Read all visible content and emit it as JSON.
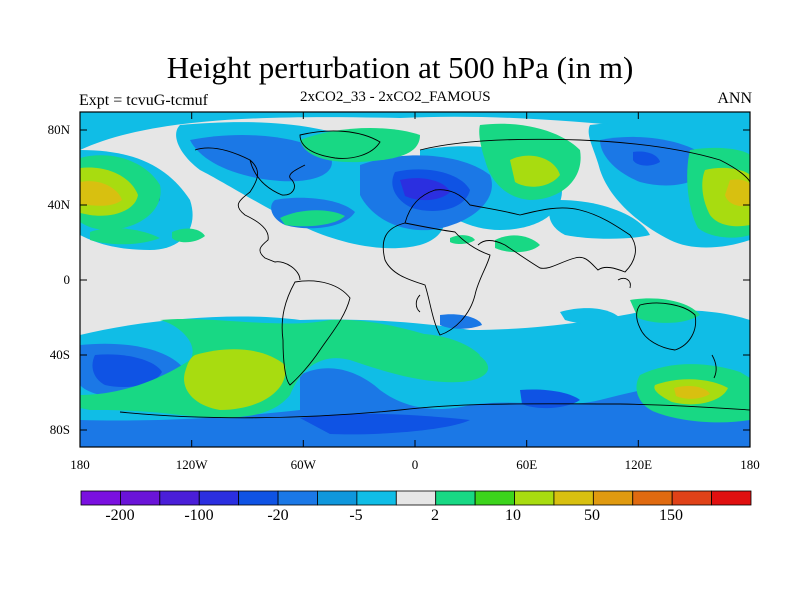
{
  "title": "Height perturbation at 500 hPa (in m)",
  "left_label": "Expt = tcvuG-tcmuf",
  "center_label": "2xCO2_33 - 2xCO2_FAMOUS",
  "right_label": "ANN",
  "lat_ticks": [
    "80N",
    "40N",
    "0",
    "40S",
    "80S"
  ],
  "lon_ticks": [
    "180",
    "120W",
    "60W",
    "0",
    "60E",
    "120E",
    "180"
  ],
  "colorbar": {
    "colors": [
      "#7a10e0",
      "#6a14d8",
      "#4a1ed8",
      "#2b2fe0",
      "#0f53e4",
      "#1b78e6",
      "#0f97dc",
      "#10bde6",
      "#e6e6e6",
      "#18d884",
      "#3cd41c",
      "#a8dc10",
      "#d8c010",
      "#e09a10",
      "#e06a10",
      "#e04218",
      "#e01010"
    ],
    "labels": [
      "-200",
      "-100",
      "-20",
      "-5",
      "2",
      "10",
      "50",
      "150"
    ]
  },
  "colors": {
    "background": "#e6e6e6",
    "light_blue": "#10bde6",
    "mid_blue": "#1b78e6",
    "deep_blue": "#2b2fe0",
    "green": "#18d884",
    "yellow_green": "#a8dc10",
    "gold": "#d8c010"
  }
}
